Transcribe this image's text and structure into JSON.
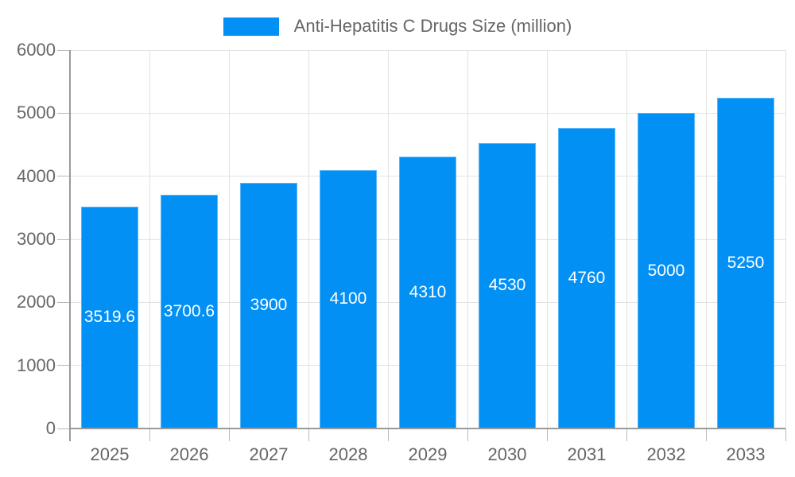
{
  "legend": {
    "label": "Anti-Hepatitis C Drugs Size (million)"
  },
  "chart_data": {
    "type": "bar",
    "title": "Anti-Hepatitis C Drugs Size (million)",
    "categories": [
      "2025",
      "2026",
      "2027",
      "2028",
      "2029",
      "2030",
      "2031",
      "2032",
      "2033"
    ],
    "values": [
      3519.6,
      3700.6,
      3900,
      4100,
      4310,
      4530,
      4760,
      5000,
      5250
    ],
    "bar_labels": [
      "3519.6",
      "3700.6",
      "3900",
      "4100",
      "4310",
      "4530",
      "4760",
      "5000",
      "5250"
    ],
    "series_name": "Anti-Hepatitis C Drugs Size (million)",
    "xlabel": "",
    "ylabel": "",
    "ylim": [
      0,
      6000
    ],
    "y_ticks": [
      "0",
      "1000",
      "2000",
      "3000",
      "4000",
      "5000",
      "6000"
    ],
    "grid": true,
    "legend_position": "top-center",
    "value_labels": "inside-bar-centered",
    "colors": {
      "bar": "#0290F5",
      "bar_label": "#FFFFFF",
      "grid_line": "#E2E2E2",
      "axis_line": "#9A9A9A",
      "tick": "#B9B9B9",
      "text": "#666666",
      "background": "#FFFFFF"
    }
  }
}
